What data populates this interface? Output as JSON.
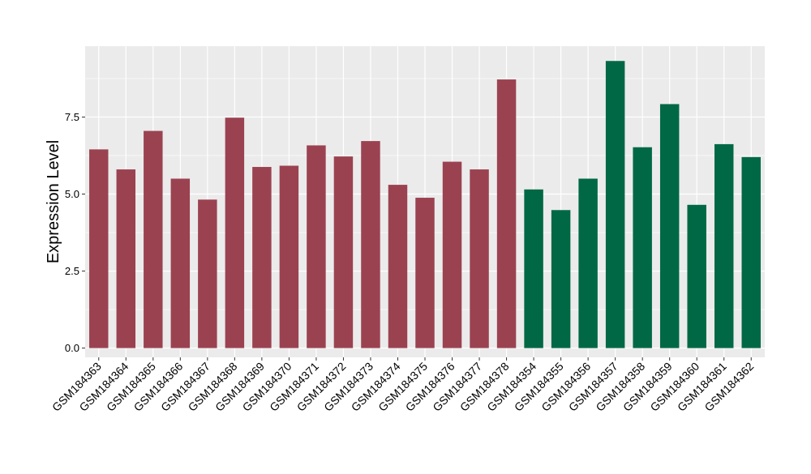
{
  "chart_data": {
    "type": "bar",
    "title": "",
    "xlabel": "",
    "ylabel": "Expression Level",
    "ylim": [
      -0.3,
      9.8
    ],
    "yticks": [
      0.0,
      2.5,
      5.0,
      7.5
    ],
    "ytick_labels": [
      "0.0",
      "2.5",
      "5.0",
      "7.5"
    ],
    "grid": true,
    "legend": "none",
    "background": "#EBEBEB",
    "gridline_color": "#FFFFFF",
    "categories": [
      "GSM184363",
      "GSM184364",
      "GSM184365",
      "GSM184366",
      "GSM184367",
      "GSM184368",
      "GSM184369",
      "GSM184370",
      "GSM184371",
      "GSM184372",
      "GSM184373",
      "GSM184374",
      "GSM184375",
      "GSM184376",
      "GSM184377",
      "GSM184378",
      "GSM184354",
      "GSM184355",
      "GSM184356",
      "GSM184357",
      "GSM184358",
      "GSM184359",
      "GSM184360",
      "GSM184361",
      "GSM184362"
    ],
    "values": [
      6.45,
      5.8,
      7.05,
      5.5,
      4.82,
      7.48,
      5.88,
      5.92,
      6.58,
      6.22,
      6.72,
      5.3,
      4.88,
      6.05,
      5.8,
      8.72,
      5.15,
      4.48,
      5.5,
      9.32,
      6.52,
      7.92,
      4.65,
      6.62,
      6.2
    ],
    "bar_colors": [
      "#9B4251",
      "#9B4251",
      "#9B4251",
      "#9B4251",
      "#9B4251",
      "#9B4251",
      "#9B4251",
      "#9B4251",
      "#9B4251",
      "#9B4251",
      "#9B4251",
      "#9B4251",
      "#9B4251",
      "#9B4251",
      "#9B4251",
      "#9B4251",
      "#006845",
      "#006845",
      "#006845",
      "#006845",
      "#006845",
      "#006845",
      "#006845",
      "#006845",
      "#006845"
    ]
  }
}
